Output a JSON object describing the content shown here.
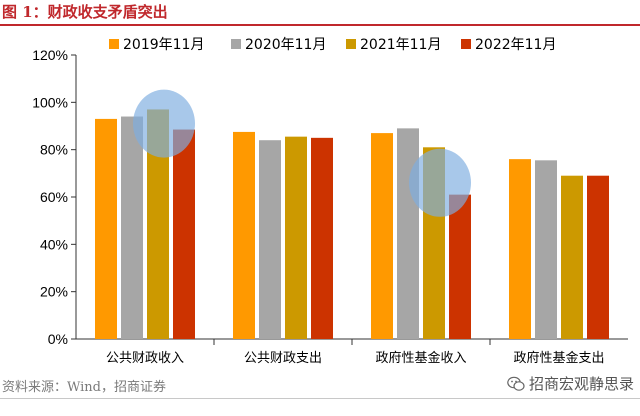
{
  "figure": {
    "title": "图 1：财政收支矛盾突出",
    "source": "资料来源：Wind，招商证券",
    "brand": "招商宏观静思录",
    "brand_icon": "wechat-icon"
  },
  "chart_data": {
    "type": "bar",
    "title": "",
    "xlabel": "",
    "ylabel": "",
    "categories": [
      "公共财政收入",
      "公共财政支出",
      "政府性基金收入",
      "政府性基金支出"
    ],
    "series": [
      {
        "name": "2019年11月",
        "color": "#FF9900",
        "values": [
          93,
          87.5,
          87,
          76
        ]
      },
      {
        "name": "2020年11月",
        "color": "#A6A6A6",
        "values": [
          94,
          84,
          89,
          75.5
        ]
      },
      {
        "name": "2021年11月",
        "color": "#CC9900",
        "values": [
          97,
          85.5,
          81,
          69
        ]
      },
      {
        "name": "2022年11月",
        "color": "#CC3300",
        "values": [
          88.5,
          85,
          61,
          69
        ]
      }
    ],
    "ylim": [
      0,
      120
    ],
    "yticks": [
      "0%",
      "20%",
      "40%",
      "60%",
      "80%",
      "100%",
      "120%"
    ],
    "ytick_values": [
      0,
      20,
      40,
      60,
      80,
      100,
      120
    ],
    "grid": false,
    "legend_position": "top",
    "highlights": [
      {
        "category": "公共财政收入",
        "center_value": 91,
        "color": "#7FAEE0"
      },
      {
        "category": "政府性基金收入",
        "center_value": 66,
        "color": "#7FAEE0"
      }
    ]
  }
}
